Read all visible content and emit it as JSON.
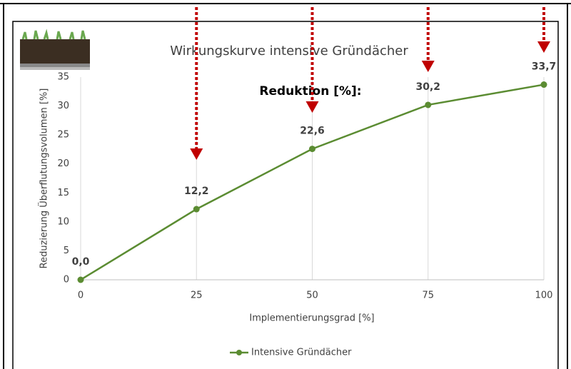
{
  "chart_data": {
    "type": "line",
    "title": "Wirkungskurve intensive Gründächer",
    "annotation": "Reduktion [%]:",
    "x_label": "Implementierungsgrad [%]",
    "y_label": "Reduzierung Überflutungsvolumen [%]",
    "x": [
      0,
      25,
      50,
      75,
      100
    ],
    "series": [
      {
        "name": "Intensive Gründächer",
        "color": "#5b8c32",
        "values": [
          0,
          12.2,
          22.6,
          30.2,
          33.7
        ],
        "value_labels": [
          "0,0",
          "12,2",
          "22,6",
          "30,2",
          "33,7"
        ]
      }
    ],
    "xlim": [
      0,
      100
    ],
    "xticks": [
      0,
      25,
      50,
      75,
      100
    ],
    "ylim": [
      0,
      35
    ],
    "yticks": [
      0,
      5,
      10,
      15,
      20,
      25,
      30,
      35
    ],
    "grid": true,
    "legend": "bottom"
  }
}
